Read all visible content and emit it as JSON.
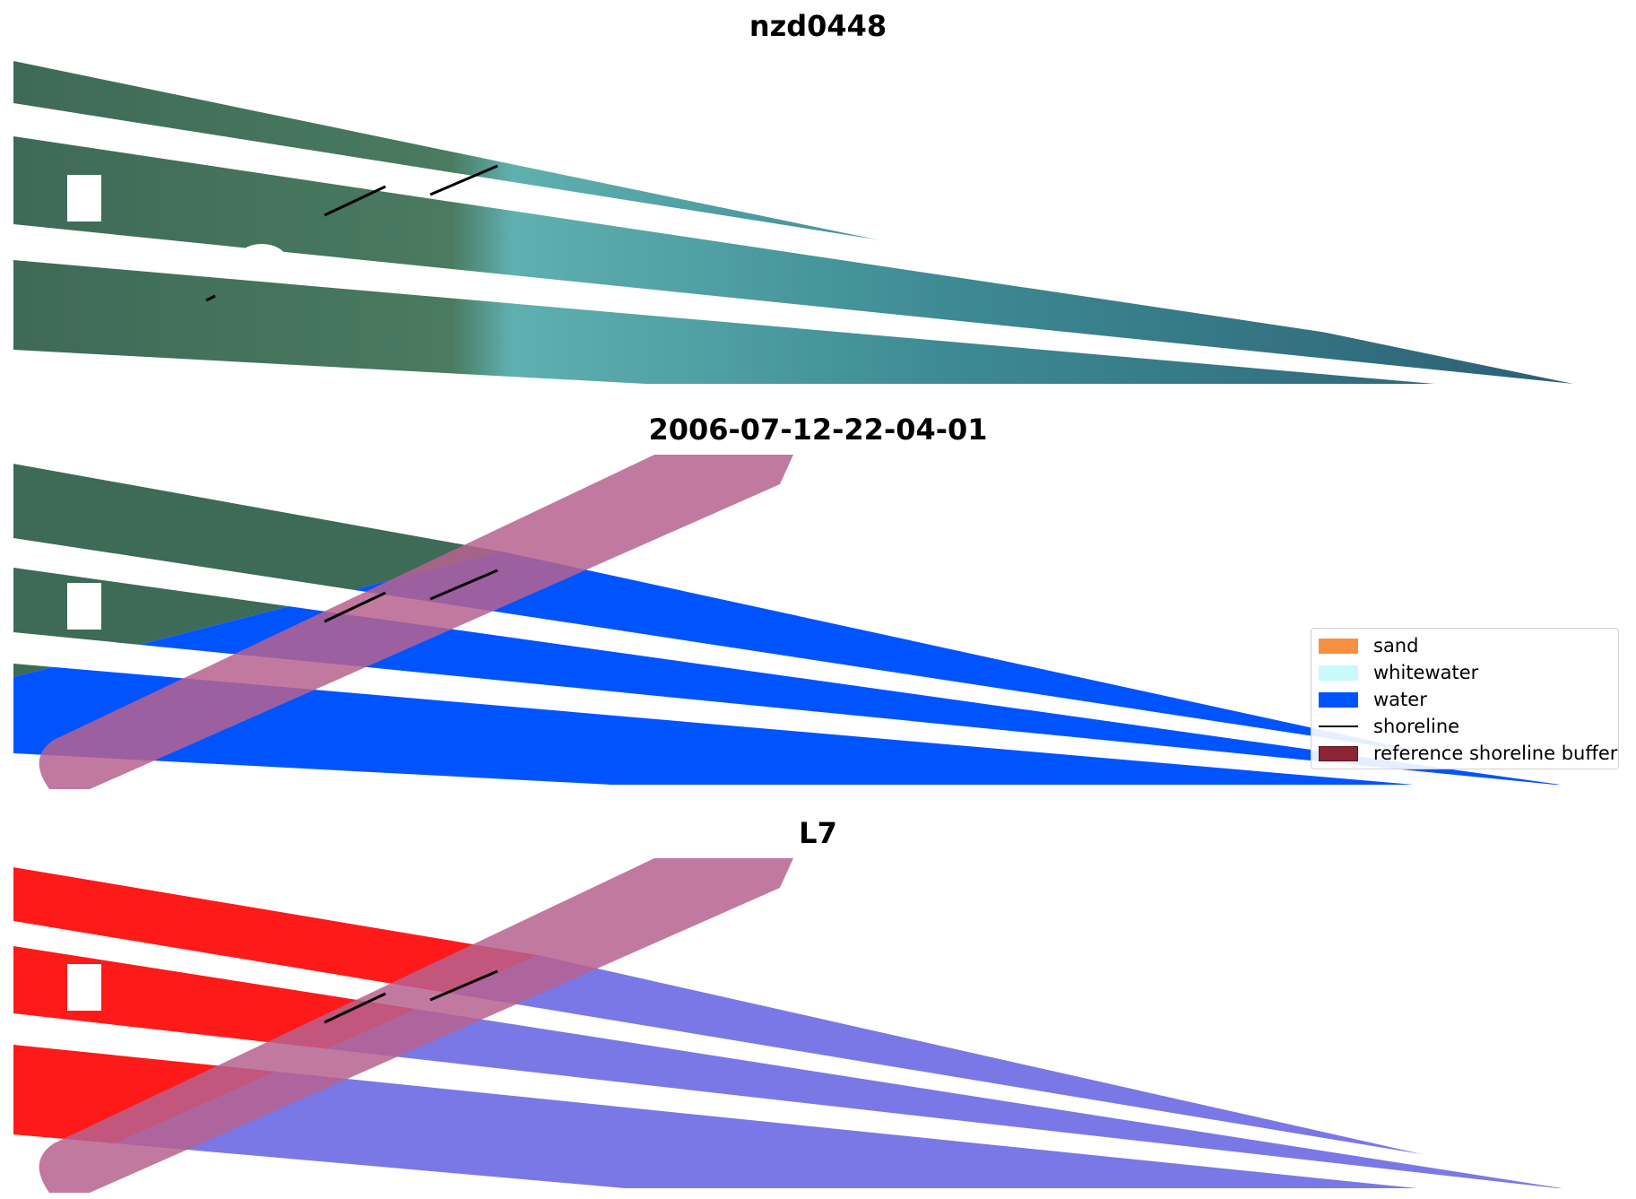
{
  "panels": [
    {
      "title": "nzd0448",
      "kind": "rgb"
    },
    {
      "title": "2006-07-12-22-04-01",
      "kind": "classified"
    },
    {
      "title": "L7",
      "kind": "index"
    }
  ],
  "legend": {
    "items": [
      {
        "label": "sand",
        "type": "patch",
        "color": "#f79040"
      },
      {
        "label": "whitewater",
        "type": "patch",
        "color": "#c8fafa"
      },
      {
        "label": "water",
        "type": "patch",
        "color": "#0054ff"
      },
      {
        "label": "shoreline",
        "type": "line",
        "color": "#000000"
      },
      {
        "label": "reference shoreline buffer",
        "type": "patch",
        "color": "#8b2535"
      }
    ]
  },
  "colors": {
    "land": "#3e6a58",
    "water_rgb": "#2f7a86",
    "water_class": "#0054ff",
    "buffer": "#b7628f",
    "index_land": "#ff1a1a",
    "index_water": "#7a78e6",
    "shoreline": "#000000"
  }
}
